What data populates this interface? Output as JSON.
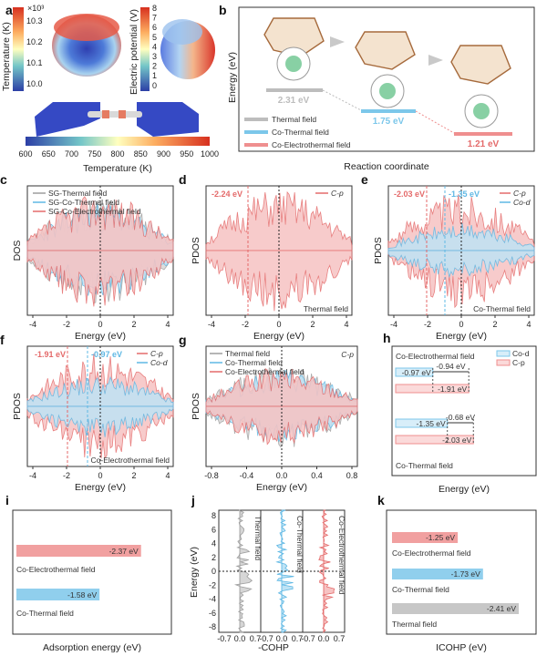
{
  "panels": {
    "a": {
      "label": "a",
      "cb1": {
        "title": "Temperature (K)",
        "unit": "×10³",
        "ticks": [
          "10.3",
          "10.2",
          "10.1",
          "10.0"
        ]
      },
      "cb2": {
        "title": "Electric potential (V)",
        "ticks": [
          "8",
          "7",
          "6",
          "5",
          "4",
          "3",
          "2",
          "1",
          "0"
        ]
      },
      "cb3": {
        "title": "Temperature (K)",
        "ticks": [
          "600",
          "650",
          "700",
          "750",
          "800",
          "850",
          "900",
          "950",
          "1000"
        ]
      }
    },
    "b": {
      "label": "b",
      "ylabel": "Energy (eV)",
      "xlabel": "Reaction coordinate",
      "levels": [
        {
          "value": "2.31 eV",
          "color": "#bdbdbd"
        },
        {
          "value": "1.75 eV",
          "color": "#7cc7ea"
        },
        {
          "value": "1.21 eV",
          "color": "#ef8f8f"
        }
      ],
      "legend": [
        "Thermal field",
        "Co-Thermal field",
        "Co-Electrothermal field"
      ]
    },
    "c": {
      "label": "c",
      "ylabel": "DOS",
      "xlabel": "Energy (eV)",
      "legend": [
        "SG-Thermal field",
        "SG-Co-Thermal field",
        "SG-Co-Electrothermal field"
      ],
      "xticks": [
        "-4",
        "-2",
        "0",
        "2",
        "4"
      ]
    },
    "d": {
      "label": "d",
      "ylabel": "PDOS",
      "xlabel": "Energy (eV)",
      "legend": [
        "C-p"
      ],
      "annot": "-2.24 eV",
      "tag": "Thermal field",
      "xticks": [
        "-4",
        "-2",
        "0",
        "2",
        "4"
      ]
    },
    "e": {
      "label": "e",
      "ylabel": "PDOS",
      "xlabel": "Energy (eV)",
      "legend": [
        "C-p",
        "Co-d"
      ],
      "annot1": "-2.03 eV",
      "annot2": "-1.35 eV",
      "tag": "Co-Thermal field",
      "xticks": [
        "-4",
        "-2",
        "0",
        "2",
        "4"
      ]
    },
    "f": {
      "label": "f",
      "ylabel": "PDOS",
      "xlabel": "Energy (eV)",
      "legend": [
        "C-p",
        "Co-d"
      ],
      "annot1": "-1.91 eV",
      "annot2": "-0.97 eV",
      "tag": "Co-Electrothermal field",
      "xticks": [
        "-4",
        "-2",
        "0",
        "2",
        "4"
      ]
    },
    "g": {
      "label": "g",
      "ylabel": "PDOS",
      "xlabel": "Energy (eV)",
      "legend": [
        "Thermal field",
        "Co-Thermal field",
        "Co-Electrothermal field"
      ],
      "tag": "C-p",
      "xticks": [
        "-0.8",
        "-0.4",
        "0.0",
        "0.4",
        "0.8"
      ]
    },
    "h": {
      "label": "h",
      "xlabel": "Energy (eV)",
      "legend": [
        "Co-d",
        "C-p"
      ],
      "groups": [
        {
          "name": "Co-Electrothermal field",
          "cod": "-0.97 eV",
          "cp": "-1.91 eV",
          "gap": "-0.94 eV"
        },
        {
          "name": "Co-Thermal field",
          "cod": "-1.35 eV",
          "cp": "-2.03 eV",
          "gap": "-0.68 eV"
        }
      ]
    },
    "i": {
      "label": "i",
      "xlabel": "Adsorption energy (eV)",
      "bars": [
        {
          "name": "Co-Electrothermal field",
          "value": "-2.37 eV",
          "color": "#ef8f8f"
        },
        {
          "name": "Co-Thermal field",
          "value": "-1.58 eV",
          "color": "#7cc7ea"
        }
      ]
    },
    "j": {
      "label": "j",
      "ylabel": "Energy (eV)",
      "xlabel": "-COHP",
      "yticks": [
        "8",
        "6",
        "4",
        "2",
        "0",
        "-2",
        "-4",
        "-6",
        "-8"
      ],
      "xticks": [
        "-0.7",
        "0.0",
        "0.7"
      ],
      "columns": [
        "Thermal field",
        "Co-Thermal field",
        "Co-Electrothermal field"
      ]
    },
    "k": {
      "label": "k",
      "xlabel": "ICOHP (eV)",
      "bars": [
        {
          "name": "Co-Electrothermal field",
          "value": "-1.25 eV",
          "color": "#ef8f8f"
        },
        {
          "name": "Co-Thermal field",
          "value": "-1.73 eV",
          "color": "#7cc7ea"
        },
        {
          "name": "Thermal field",
          "value": "-2.41 eV",
          "color": "#bdbdbd"
        }
      ]
    }
  },
  "colors": {
    "gray": "#9e9e9e",
    "blue": "#5fb8e4",
    "red": "#e46a6a",
    "grayFill": "#d6d6d6",
    "blueFill": "#bfe3f5",
    "redFill": "#f6c3c3"
  },
  "chart_data": [
    {
      "type": "bar",
      "id": "i",
      "categories": [
        "Co-Electrothermal field",
        "Co-Thermal field"
      ],
      "values": [
        -2.37,
        -1.58
      ],
      "xlabel": "Adsorption energy (eV)"
    },
    {
      "type": "bar",
      "id": "k",
      "categories": [
        "Co-Electrothermal field",
        "Co-Thermal field",
        "Thermal field"
      ],
      "values": [
        -1.25,
        -1.73,
        -2.41
      ],
      "xlabel": "ICOHP (eV)"
    },
    {
      "type": "bar",
      "id": "h",
      "categories": [
        "Co-Electrothermal field",
        "Co-Thermal field"
      ],
      "series": [
        {
          "name": "Co-d",
          "values": [
            -0.97,
            -1.35
          ]
        },
        {
          "name": "C-p",
          "values": [
            -1.91,
            -2.03
          ]
        }
      ],
      "xlabel": "Energy (eV)"
    },
    {
      "type": "line",
      "id": "b",
      "categories": [
        "Thermal field",
        "Co-Thermal field",
        "Co-Electrothermal field"
      ],
      "values": [
        2.31,
        1.75,
        1.21
      ],
      "ylabel": "Energy (eV)",
      "xlabel": "Reaction coordinate"
    }
  ]
}
